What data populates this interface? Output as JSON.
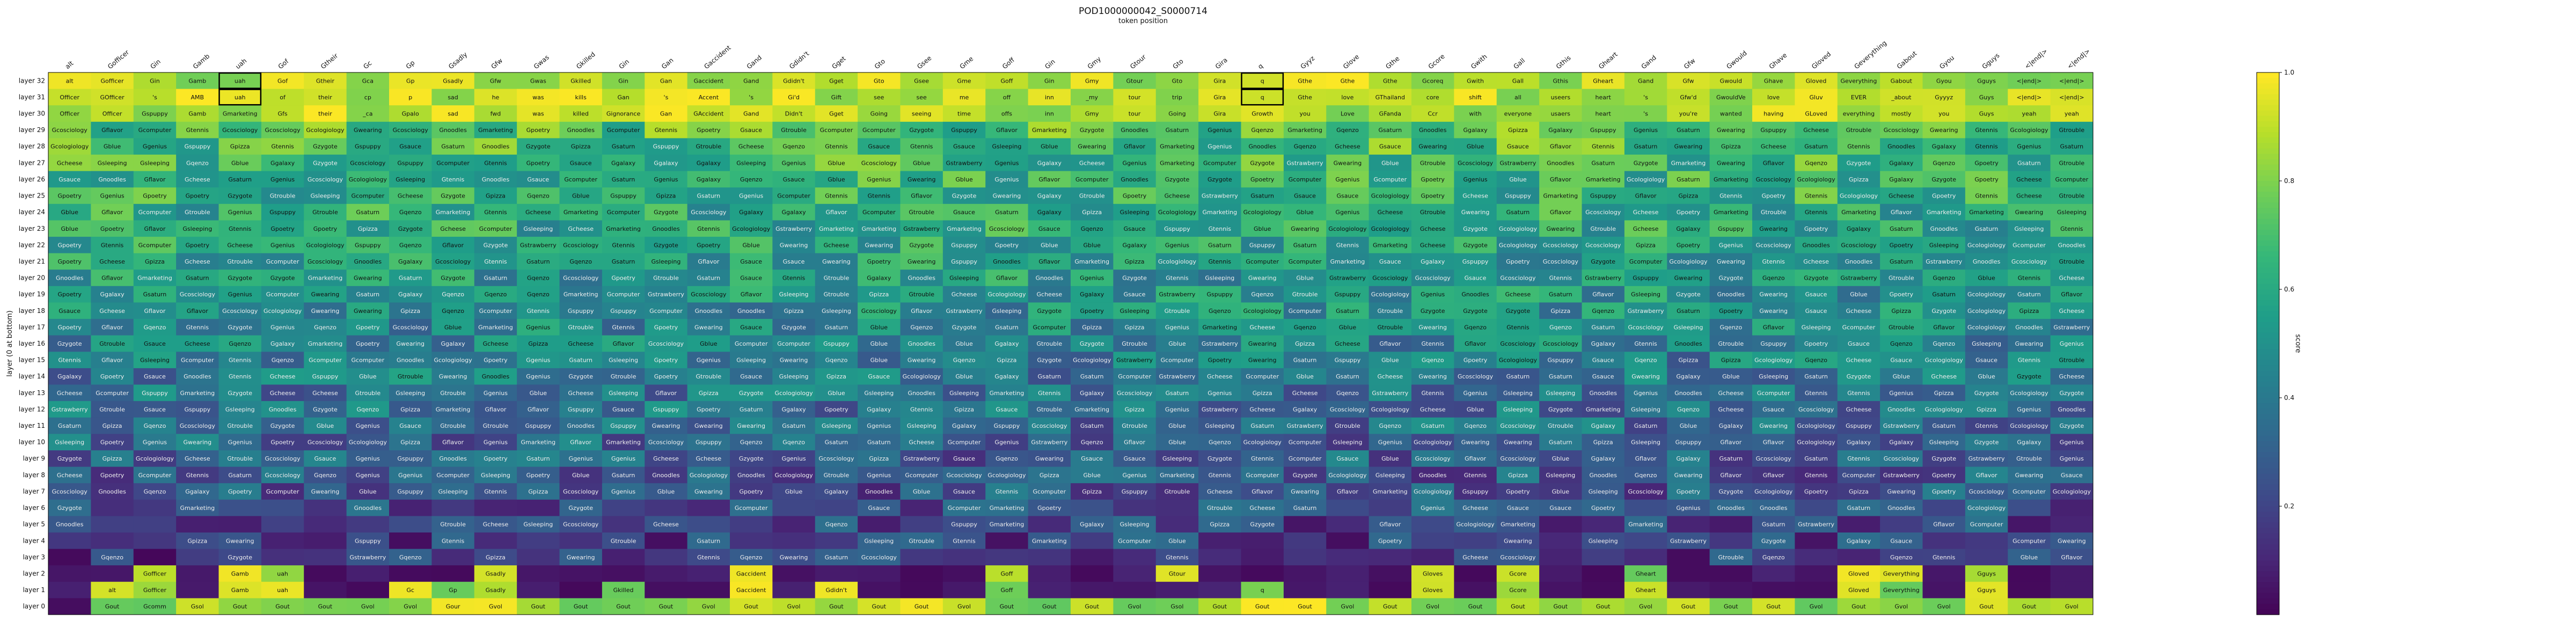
{
  "chart_data": {
    "type": "heatmap",
    "title": "POD1000000042_S0000714",
    "subtitle": "token position",
    "xlabel": "",
    "ylabel": "layer (0 at bottom)",
    "colorbar_label": "score",
    "colorbar_ticks": [
      "0.2",
      "0.4",
      "0.6",
      "0.8",
      "1.0"
    ],
    "vmin": 0.0,
    "vmax": 1.0,
    "colormap": "viridis",
    "x_tokens": [
      "alt",
      "Gofficer",
      "Gin",
      "Gamb",
      "uah",
      "Gof",
      "Gtheir",
      "Gc",
      "Gp",
      "Gsadly",
      "Gfw",
      "Gwas",
      "Gkilled",
      "Gin",
      "Gan",
      "Gaccident",
      "Gand",
      "Gdidn't",
      "Gget",
      "Gto",
      "Gsee",
      "Gme",
      "Goff",
      "Gin",
      "Gmy",
      "Gtour",
      "Gto",
      "Gira",
      "q",
      "Gyyz",
      "Glove",
      "Gthe",
      "Gcore",
      "Gwith",
      "Gall",
      "Gthis",
      "Gheart",
      "Gand",
      "Gfw",
      "Gwould",
      "Ghave",
      "Gloved",
      "Geverything",
      "Gabout",
      "Gyou",
      "Gguys",
      "<|end|>",
      "<|end|>"
    ],
    "y_labels": [
      "layer 32",
      "layer 31",
      "layer 30",
      "layer 29",
      "layer 28",
      "layer 27",
      "layer 26",
      "layer 25",
      "layer 24",
      "layer 23",
      "layer 22",
      "layer 21",
      "layer 20",
      "layer 19",
      "layer 18",
      "layer 17",
      "layer 16",
      "layer 15",
      "layer 14",
      "layer 13",
      "layer 12",
      "layer 11",
      "layer 10",
      "layer 9",
      "layer 8",
      "layer 7",
      "layer 6",
      "layer 5",
      "layer 4",
      "layer 3",
      "layer 2",
      "layer 1",
      "layer 0"
    ],
    "highlighted_cells": [
      [
        0,
        4
      ],
      [
        1,
        4
      ],
      [
        0,
        28
      ],
      [
        1,
        28
      ]
    ],
    "top_rows": [
      {
        "layer": "layer 32",
        "tokens": [
          "alt",
          "Gofficer",
          "Gin",
          "Gamb",
          "uah",
          "Gof",
          "Gtheir",
          "Gca",
          "Gp",
          "Gsadly",
          "Gfw",
          "Gwas",
          "Gkilled",
          "Gin",
          "Gan",
          "Gaccident",
          "Gand",
          "Gdidn't",
          "Gget",
          "Gto",
          "Gsee",
          "Gme",
          "Goff",
          "Gin",
          "Gmy",
          "Gtour",
          "Gto",
          "Gira",
          "q",
          "Gthe",
          "Gthe",
          "Gthe",
          "Gcoreq",
          "Gwith",
          "Gall",
          "Gthis",
          "Gheart",
          "Gand",
          "Gfw",
          "Gwould",
          "Ghave",
          "Gloved",
          "Geverything",
          "Gabout",
          "Gyou",
          "Gguys",
          "<|end|>",
          "<|end|>"
        ]
      },
      {
        "layer": "layer 31",
        "tokens": [
          "Officer",
          "GOfficer",
          "'s",
          "AMB",
          "uah",
          "of",
          "their",
          "cp",
          "p",
          "sad",
          "he",
          "was",
          "kills",
          "Gan",
          "'s",
          "Accent",
          "'s",
          "Gi'd",
          "Gift",
          "see",
          "see",
          "me",
          "off",
          "inn",
          "_my",
          "tour",
          "trip",
          "Gira",
          "q",
          "Gthe",
          "love",
          "GThailand",
          "core",
          "shift",
          "all",
          "useers",
          "heart",
          "'s",
          "Gfw'd",
          "GwouldVe",
          "love",
          "Gluv",
          "EVER",
          "_about",
          "Gyyyz",
          "Guys",
          "<|end|>",
          "<|end|>"
        ]
      },
      {
        "layer": "layer 30",
        "tokens": [
          "Officer",
          "Officer",
          "Gspuppy",
          "Gamb",
          "Gmarketing",
          "Gfs",
          "their",
          "_ca",
          "Gpalo",
          "sad",
          "fwd",
          "was",
          "killed",
          "Gignorance",
          "Gan",
          "GAccident",
          "Gand",
          "Didn't",
          "Gget",
          "Going",
          "seeing",
          "time",
          "offs",
          "inn",
          "Gmy",
          "tour",
          "Going",
          "Gira",
          "Growth",
          "you",
          "Love",
          "GFanda",
          "Ccr",
          "with",
          "everyone",
          "usaers",
          "heart",
          "'s",
          "you're",
          "wanted",
          "having",
          "GLoved",
          "everything",
          "mostly",
          "you",
          "Guys",
          "yeah",
          "yeah"
        ]
      }
    ],
    "mid_band_tokens": [
      "Gcosciology",
      "Gcologiology",
      "Ggenius",
      "Gpoetry",
      "Gzygote",
      "Gtrouble",
      "Gspuppy",
      "Gwearing",
      "Gstrawberry",
      "Gcomputer",
      "Ggalaxy",
      "Gmarketing",
      "Gsleeping",
      "Gqenzo",
      "Gsaturn",
      "Gnoodles",
      "Gtennis",
      "Gsauce",
      "Gpizza",
      "Gblue",
      "Gcheese",
      "Gflavor"
    ],
    "bottom_rows": [
      {
        "layer": "layer 2",
        "tokens": [
          "",
          "",
          "Gofficer",
          "",
          "Gamb",
          "uah",
          "",
          "",
          "",
          "",
          "Gsadly",
          "",
          "",
          "",
          "",
          "",
          "Gaccident",
          "",
          "",
          "",
          "",
          "",
          "Goff",
          "",
          "",
          "",
          "Gtour",
          "",
          "",
          "",
          "",
          "",
          "Gloves",
          "",
          "Gcore",
          "",
          "",
          "Gheart",
          "",
          "",
          "",
          "",
          "Gloved",
          "Geverything",
          "",
          "Gguys",
          "",
          ""
        ]
      },
      {
        "layer": "layer 1",
        "tokens": [
          "",
          "alt",
          "Gofficer",
          "",
          "Gamb",
          "uah",
          "",
          "",
          "Gc",
          "Gp",
          "Gsadly",
          "",
          "",
          "Gkilled",
          "",
          "",
          "Gaccident",
          "",
          "Gdidn't",
          "",
          "",
          "",
          "Goff",
          "",
          "",
          "",
          "",
          "",
          "q",
          "",
          "",
          "",
          "Gloves",
          "",
          "Gcore",
          "",
          "",
          "Gheart",
          "",
          "",
          "",
          "",
          "Gloved",
          "Geverything",
          "",
          "Gguys",
          "",
          ""
        ]
      },
      {
        "layer": "layer 0",
        "tokens": [
          "",
          "Gout",
          "Gcomm",
          "Gsol",
          "Gout",
          "Gout",
          "Gout",
          "Gvol",
          "Gvol",
          "Gour",
          "Gvol",
          "Gout",
          "Gout",
          "Gout",
          "Gout",
          "Gvol",
          "Gout",
          "Gvol",
          "Gout",
          "Gout",
          "Gout",
          "Gvol",
          "Gout",
          "Gout",
          "Gout",
          "Gvol",
          "Gsol",
          "Gout",
          "Gout",
          "Gout",
          "Gvol",
          "Gout",
          "Gvol",
          "Gout",
          "Gout",
          "Gout",
          "Gout",
          "Gvol",
          "Gout",
          "Gout",
          "Gout",
          "Gvol",
          "Gout",
          "Gvol",
          "Gvol",
          "Gout",
          "Gout",
          "Gvol"
        ]
      }
    ]
  }
}
